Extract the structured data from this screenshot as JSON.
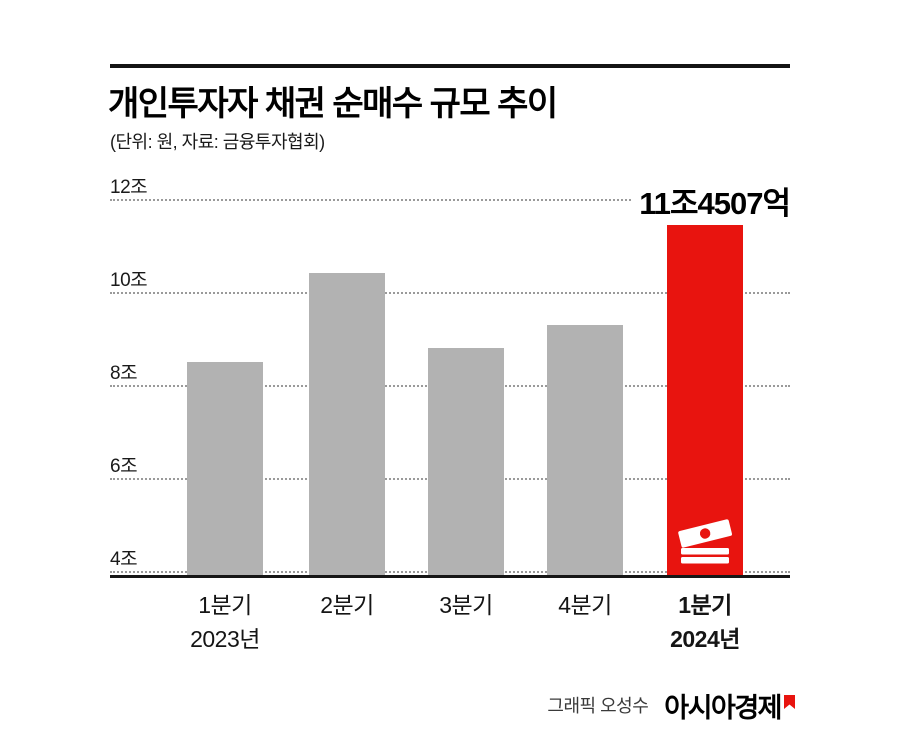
{
  "header": {
    "title": "개인투자자 채권 순매수 규모 추이",
    "subtitle": "(단위: 원, 자료: 금융투자협회)"
  },
  "chart_data": {
    "type": "bar",
    "title": "개인투자자 채권 순매수 규모 추이",
    "unit_source_note": "(단위: 원, 자료: 금융투자협회)",
    "unit": "조 원",
    "categories": [
      "1분기",
      "2분기",
      "3분기",
      "4분기",
      "1분기"
    ],
    "category_years": [
      {
        "index": 0,
        "label": "2023년"
      },
      {
        "index": 4,
        "label": "2024년"
      }
    ],
    "values": [
      8.5,
      10.4,
      8.8,
      9.3,
      11.4507
    ],
    "highlight_index": 4,
    "annotation": "11조4507억",
    "yticks": [
      {
        "value": 12,
        "label": "12조"
      },
      {
        "value": 10,
        "label": "10조"
      },
      {
        "value": 8,
        "label": "8조"
      },
      {
        "value": 6,
        "label": "6조"
      },
      {
        "value": 4,
        "label": "4조"
      }
    ],
    "ylim": [
      4,
      12
    ],
    "grid": "horizontal-dotted",
    "legend": "none",
    "colors": {
      "bar": "#b2b2b2",
      "highlight": "#e8140f",
      "grid": "#9a9a9a",
      "axis": "#161616"
    }
  },
  "footer": {
    "credit": "그래픽 오성수",
    "brand": "아시아경제"
  }
}
